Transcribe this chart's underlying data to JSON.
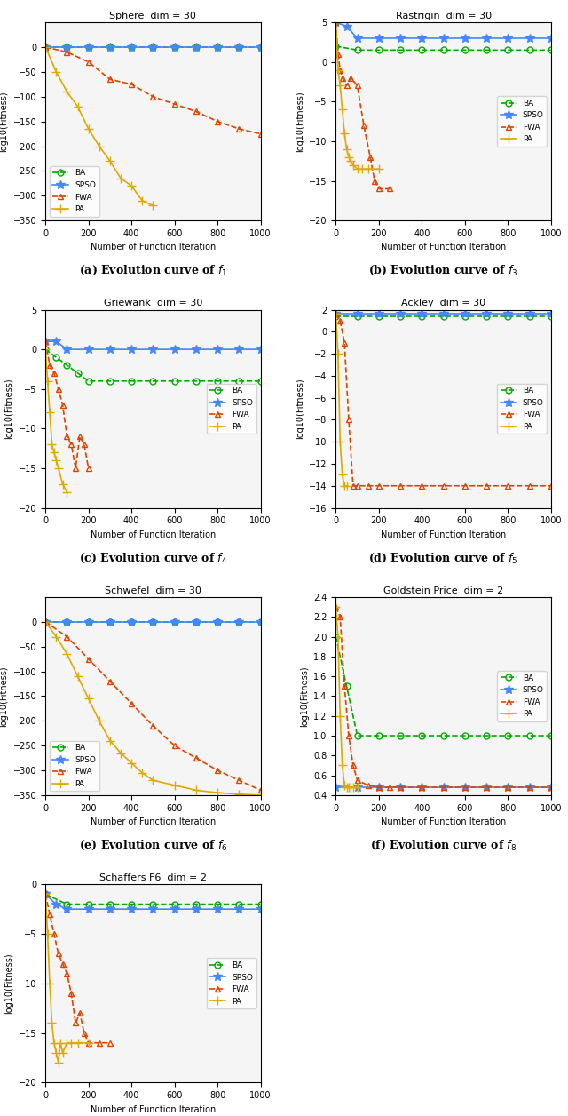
{
  "plots": [
    {
      "title": "Sphere  dim = 30",
      "xlabel": "Number of Function Iteration",
      "ylabel": "log10(Fitness)",
      "caption": "(a) Evolution curve of $f_1$",
      "ylim": [
        -350,
        50
      ],
      "xlim": [
        0,
        1000
      ],
      "yticks": [
        0,
        -50,
        -100,
        -150,
        -200,
        -250,
        -300,
        -350
      ],
      "xticks": [
        0,
        200,
        400,
        600,
        800,
        1000
      ],
      "series": {
        "BA": {
          "x": [
            0,
            100,
            200,
            300,
            400,
            500,
            600,
            700,
            800,
            900,
            1000
          ],
          "y": [
            0,
            0,
            0,
            0,
            0,
            0,
            0,
            0,
            0,
            0,
            0
          ],
          "color": "#00aa00",
          "marker": "o",
          "linestyle": "--"
        },
        "SPSO": {
          "x": [
            0,
            100,
            200,
            300,
            400,
            500,
            600,
            700,
            800,
            900,
            1000
          ],
          "y": [
            0,
            0,
            0,
            0,
            0,
            0,
            0,
            0,
            0,
            0,
            0
          ],
          "color": "#4488ff",
          "marker": "*",
          "linestyle": "-"
        },
        "FWA": {
          "x": [
            0,
            100,
            200,
            300,
            400,
            500,
            600,
            700,
            800,
            900,
            1000
          ],
          "y": [
            0,
            -10,
            -30,
            -65,
            -75,
            -100,
            -115,
            -130,
            -150,
            -165,
            -175
          ],
          "color": "#dd4400",
          "marker": "^",
          "linestyle": "--"
        },
        "PA": {
          "x": [
            0,
            50,
            100,
            150,
            200,
            250,
            300,
            350,
            400,
            450,
            500
          ],
          "y": [
            0,
            -50,
            -90,
            -120,
            -165,
            -200,
            -230,
            -265,
            -280,
            -310,
            -320
          ],
          "color": "#ddaa00",
          "marker": "+",
          "linestyle": "-"
        }
      }
    },
    {
      "title": "Rastrigin  dim = 30",
      "xlabel": "Number of Function Iteration",
      "ylabel": "log10(Fitness)",
      "caption": "(b) Evolution curve of $f_3$",
      "ylim": [
        -20,
        5
      ],
      "xlim": [
        0,
        1000
      ],
      "yticks": [
        5,
        0,
        -5,
        -10,
        -15,
        -20
      ],
      "xticks": [
        0,
        200,
        400,
        600,
        800,
        1000
      ],
      "series": {
        "BA": {
          "x": [
            0,
            100,
            200,
            300,
            400,
            500,
            600,
            700,
            800,
            900,
            1000
          ],
          "y": [
            2,
            1.5,
            1.5,
            1.5,
            1.5,
            1.5,
            1.5,
            1.5,
            1.5,
            1.5,
            1.5
          ],
          "color": "#00aa00",
          "marker": "o",
          "linestyle": "--"
        },
        "SPSO": {
          "x": [
            0,
            50,
            100,
            200,
            300,
            400,
            500,
            600,
            700,
            800,
            900,
            1000
          ],
          "y": [
            5,
            4.5,
            3,
            3,
            3,
            3,
            3,
            3,
            3,
            3,
            3,
            3
          ],
          "color": "#4488ff",
          "marker": "*",
          "linestyle": "-"
        },
        "FWA": {
          "x": [
            0,
            10,
            20,
            30,
            50,
            70,
            100,
            130,
            160,
            180,
            200,
            250
          ],
          "y": [
            5,
            1,
            -1,
            -2,
            -3,
            -2,
            -3,
            -8,
            -12,
            -15,
            -16,
            -16
          ],
          "color": "#dd4400",
          "marker": "^",
          "linestyle": "--"
        },
        "PA": {
          "x": [
            0,
            10,
            20,
            30,
            40,
            50,
            60,
            70,
            80,
            100,
            120,
            150,
            200
          ],
          "y": [
            5,
            -1,
            -3,
            -6,
            -9,
            -11,
            -12,
            -12.5,
            -13,
            -13.5,
            -13.5,
            -13.5,
            -13.5
          ],
          "color": "#ddaa00",
          "marker": "+",
          "linestyle": "-"
        }
      }
    },
    {
      "title": "Griewank  dim = 30",
      "xlabel": "Number of Function Iteration",
      "ylabel": "log10(Fitness)",
      "caption": "(c) Evolution curve of $f_4$",
      "ylim": [
        -20,
        5
      ],
      "xlim": [
        0,
        1000
      ],
      "yticks": [
        5,
        0,
        -5,
        -10,
        -15,
        -20
      ],
      "xticks": [
        0,
        200,
        400,
        600,
        800,
        1000
      ],
      "series": {
        "BA": {
          "x": [
            0,
            50,
            100,
            150,
            200,
            300,
            400,
            500,
            600,
            700,
            800,
            900,
            1000
          ],
          "y": [
            0,
            -1,
            -2,
            -3,
            -4,
            -4,
            -4,
            -4,
            -4,
            -4,
            -4,
            -4,
            -4
          ],
          "color": "#00aa00",
          "marker": "o",
          "linestyle": "--"
        },
        "SPSO": {
          "x": [
            0,
            50,
            100,
            200,
            300,
            400,
            500,
            600,
            700,
            800,
            900,
            1000
          ],
          "y": [
            1,
            1,
            0,
            0,
            0,
            0,
            0,
            0,
            0,
            0,
            0,
            0
          ],
          "color": "#4488ff",
          "marker": "*",
          "linestyle": "-"
        },
        "FWA": {
          "x": [
            0,
            20,
            40,
            60,
            80,
            100,
            120,
            140,
            160,
            180,
            200
          ],
          "y": [
            1,
            -2,
            -3,
            -5,
            -7,
            -11,
            -12,
            -15,
            -11,
            -12,
            -15
          ],
          "color": "#dd4400",
          "marker": "^",
          "linestyle": "--"
        },
        "PA": {
          "x": [
            0,
            10,
            20,
            30,
            40,
            50,
            60,
            80,
            100
          ],
          "y": [
            0,
            -4,
            -8,
            -12,
            -13,
            -14,
            -15,
            -17,
            -18
          ],
          "color": "#ddaa00",
          "marker": "+",
          "linestyle": "-"
        }
      }
    },
    {
      "title": "Ackley  dim = 30",
      "xlabel": "Number of Function Iteration",
      "ylabel": "log10(Fitness)",
      "caption": "(d) Evolution curve of $f_5$",
      "ylim": [
        -16,
        2
      ],
      "xlim": [
        0,
        1000
      ],
      "yticks": [
        2,
        0,
        -2,
        -4,
        -6,
        -8,
        -10,
        -12,
        -14,
        -16
      ],
      "xticks": [
        0,
        200,
        400,
        600,
        800,
        1000
      ],
      "series": {
        "BA": {
          "x": [
            0,
            100,
            200,
            300,
            400,
            500,
            600,
            700,
            800,
            900,
            1000
          ],
          "y": [
            1.4,
            1.4,
            1.4,
            1.4,
            1.4,
            1.4,
            1.4,
            1.4,
            1.4,
            1.4,
            1.4
          ],
          "color": "#00aa00",
          "marker": "o",
          "linestyle": "--"
        },
        "SPSO": {
          "x": [
            0,
            100,
            200,
            300,
            400,
            500,
            600,
            700,
            800,
            900,
            1000
          ],
          "y": [
            1.6,
            1.6,
            1.6,
            1.6,
            1.6,
            1.6,
            1.6,
            1.6,
            1.6,
            1.6,
            1.6
          ],
          "color": "#4488ff",
          "marker": "*",
          "linestyle": "-"
        },
        "FWA": {
          "x": [
            0,
            20,
            40,
            60,
            80,
            100,
            150,
            200,
            300,
            400,
            500,
            600,
            700,
            800,
            900,
            1000
          ],
          "y": [
            1.6,
            1,
            -1,
            -8,
            -14,
            -14,
            -14,
            -14,
            -14,
            -14,
            -14,
            -14,
            -14,
            -14,
            -14,
            -14
          ],
          "color": "#dd4400",
          "marker": "^",
          "linestyle": "--"
        },
        "PA": {
          "x": [
            0,
            10,
            20,
            30,
            40,
            50
          ],
          "y": [
            1.6,
            -2,
            -10,
            -13,
            -14,
            -14
          ],
          "color": "#ddaa00",
          "marker": "+",
          "linestyle": "-"
        }
      }
    },
    {
      "title": "Schwefel  dim = 30",
      "xlabel": "Number of Function Iteration",
      "ylabel": "log10(Fitness)",
      "caption": "(e) Evolution curve of $f_6$",
      "ylim": [
        -350,
        50
      ],
      "xlim": [
        0,
        1000
      ],
      "yticks": [
        0,
        -50,
        -100,
        -150,
        -200,
        -250,
        -300,
        -350
      ],
      "xticks": [
        0,
        200,
        400,
        600,
        800,
        1000
      ],
      "series": {
        "BA": {
          "x": [
            0,
            100,
            200,
            300,
            400,
            500,
            600,
            700,
            800,
            900,
            1000
          ],
          "y": [
            0,
            0,
            0,
            0,
            0,
            0,
            0,
            0,
            0,
            0,
            0
          ],
          "color": "#00aa00",
          "marker": "o",
          "linestyle": "--"
        },
        "SPSO": {
          "x": [
            0,
            100,
            200,
            300,
            400,
            500,
            600,
            700,
            800,
            900,
            1000
          ],
          "y": [
            0,
            0,
            0,
            0,
            0,
            0,
            0,
            0,
            0,
            0,
            0
          ],
          "color": "#4488ff",
          "marker": "*",
          "linestyle": "-"
        },
        "FWA": {
          "x": [
            0,
            100,
            200,
            300,
            400,
            500,
            600,
            700,
            800,
            900,
            1000
          ],
          "y": [
            0,
            -30,
            -75,
            -120,
            -165,
            -210,
            -250,
            -275,
            -300,
            -320,
            -340
          ],
          "color": "#dd4400",
          "marker": "^",
          "linestyle": "--"
        },
        "PA": {
          "x": [
            0,
            50,
            100,
            150,
            200,
            250,
            300,
            350,
            400,
            450,
            500,
            600,
            700,
            800,
            900,
            1000
          ],
          "y": [
            0,
            -30,
            -65,
            -110,
            -155,
            -200,
            -240,
            -265,
            -285,
            -305,
            -320,
            -330,
            -340,
            -345,
            -348,
            -350
          ],
          "color": "#ddaa00",
          "marker": "+",
          "linestyle": "-"
        }
      }
    },
    {
      "title": "Goldstein Price  dim = 2",
      "xlabel": "Number of Function Iteration",
      "ylabel": "log10(Fitness)",
      "caption": "(f) Evolution curve of $f_8$",
      "ylim": [
        0.4,
        2.4
      ],
      "xlim": [
        0,
        1000
      ],
      "yticks": [
        0.4,
        0.6,
        0.8,
        1.0,
        1.2,
        1.4,
        1.6,
        1.8,
        2.0,
        2.2,
        2.4
      ],
      "xticks": [
        0,
        200,
        400,
        600,
        800,
        1000
      ],
      "series": {
        "BA": {
          "x": [
            0,
            50,
            100,
            200,
            300,
            400,
            500,
            600,
            700,
            800,
            900,
            1000
          ],
          "y": [
            2,
            1.5,
            1,
            1,
            1,
            1,
            1,
            1,
            1,
            1,
            1,
            1
          ],
          "color": "#00aa00",
          "marker": "o",
          "linestyle": "--"
        },
        "SPSO": {
          "x": [
            0,
            100,
            200,
            300,
            400,
            500,
            600,
            700,
            800,
            900,
            1000
          ],
          "y": [
            0.48,
            0.48,
            0.48,
            0.48,
            0.48,
            0.48,
            0.48,
            0.48,
            0.48,
            0.48,
            0.48
          ],
          "color": "#4488ff",
          "marker": "*",
          "linestyle": "-"
        },
        "FWA": {
          "x": [
            0,
            20,
            40,
            60,
            80,
            100,
            150,
            200,
            250,
            300,
            400,
            500,
            600,
            700,
            800,
            900,
            1000
          ],
          "y": [
            2.3,
            2.2,
            1.5,
            1,
            0.7,
            0.55,
            0.5,
            0.48,
            0.48,
            0.48,
            0.48,
            0.48,
            0.48,
            0.48,
            0.48,
            0.48,
            0.48
          ],
          "color": "#dd4400",
          "marker": "^",
          "linestyle": "--"
        },
        "PA": {
          "x": [
            0,
            10,
            20,
            30,
            40,
            50,
            60,
            70,
            80,
            100
          ],
          "y": [
            2.3,
            2,
            1.2,
            0.7,
            0.5,
            0.48,
            0.48,
            0.48,
            0.48,
            0.48
          ],
          "color": "#ddaa00",
          "marker": "+",
          "linestyle": "-"
        }
      }
    },
    {
      "title": "Schaffers F6  dim = 2",
      "xlabel": "Number of Function Iteration",
      "ylabel": "log10(Fitness)",
      "caption": "(g) Evolution curve of $f_9$",
      "ylim": [
        -20,
        0
      ],
      "xlim": [
        0,
        1000
      ],
      "yticks": [
        0,
        -5,
        -10,
        -15,
        -20
      ],
      "xticks": [
        0,
        200,
        400,
        600,
        800,
        1000
      ],
      "series": {
        "BA": {
          "x": [
            0,
            100,
            200,
            300,
            400,
            500,
            600,
            700,
            800,
            900,
            1000
          ],
          "y": [
            -1,
            -2,
            -2,
            -2,
            -2,
            -2,
            -2,
            -2,
            -2,
            -2,
            -2
          ],
          "color": "#00aa00",
          "marker": "o",
          "linestyle": "--"
        },
        "SPSO": {
          "x": [
            0,
            50,
            100,
            200,
            300,
            400,
            500,
            600,
            700,
            800,
            900,
            1000
          ],
          "y": [
            -1,
            -2,
            -2.5,
            -2.5,
            -2.5,
            -2.5,
            -2.5,
            -2.5,
            -2.5,
            -2.5,
            -2.5,
            -2.5
          ],
          "color": "#4488ff",
          "marker": "*",
          "linestyle": "-"
        },
        "FWA": {
          "x": [
            0,
            20,
            40,
            60,
            80,
            100,
            120,
            140,
            160,
            180,
            200,
            250,
            300
          ],
          "y": [
            -1,
            -3,
            -5,
            -7,
            -8,
            -9,
            -11,
            -14,
            -13,
            -15,
            -16,
            -16,
            -16
          ],
          "color": "#dd4400",
          "marker": "^",
          "linestyle": "--"
        },
        "PA": {
          "x": [
            0,
            10,
            20,
            30,
            40,
            50,
            60,
            70,
            80,
            100,
            120,
            150,
            200
          ],
          "y": [
            -1,
            -5,
            -10,
            -14,
            -16,
            -17,
            -18,
            -16,
            -17,
            -16,
            -16,
            -16,
            -16
          ],
          "color": "#ddaa00",
          "marker": "+",
          "linestyle": "-"
        }
      }
    }
  ],
  "legend_labels": [
    "BA",
    "SPSO",
    "FWA",
    "PA"
  ],
  "legend_colors": [
    "#00aa00",
    "#4488ff",
    "#dd4400",
    "#ddaa00"
  ],
  "legend_markers": [
    "o",
    "*",
    "^",
    "+"
  ],
  "legend_linestyles": [
    "--",
    "-",
    "--",
    "-"
  ],
  "bg_color": "#f0f0f0"
}
